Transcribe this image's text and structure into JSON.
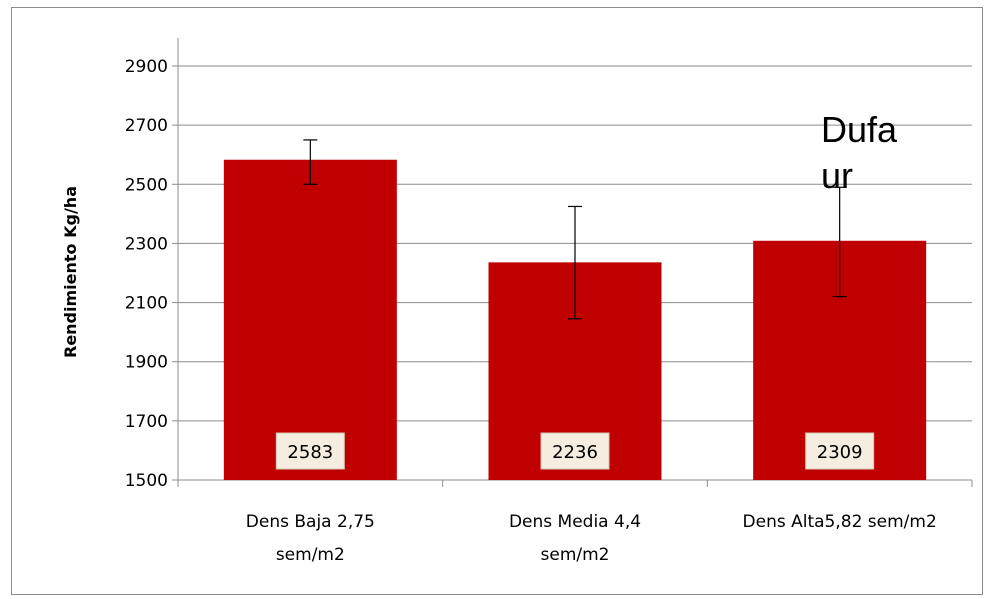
{
  "chart_data": {
    "type": "bar",
    "categories": [
      [
        "Dens Baja 2,75",
        "sem/m2"
      ],
      [
        "Dens Media 4,4",
        "sem/m2"
      ],
      [
        "Dens Alta5,82 sem/m2"
      ]
    ],
    "values": [
      2583,
      2236,
      2309
    ],
    "data_labels": [
      "2583",
      "2236",
      "2309"
    ],
    "error_bars": [
      {
        "low": 2500,
        "high": 2650
      },
      {
        "low": 2045,
        "high": 2425
      },
      {
        "low": 2120,
        "high": 2490
      }
    ],
    "ylabel": "Rendimiento Kg/ha",
    "ylim": [
      1500,
      2900
    ],
    "yticks": [
      "1500",
      "1700",
      "1900",
      "2100",
      "2300",
      "2500",
      "2700",
      "2900"
    ],
    "grid": true,
    "bar_color": "#c00000",
    "annotation": [
      "Dufa",
      "ur"
    ]
  }
}
